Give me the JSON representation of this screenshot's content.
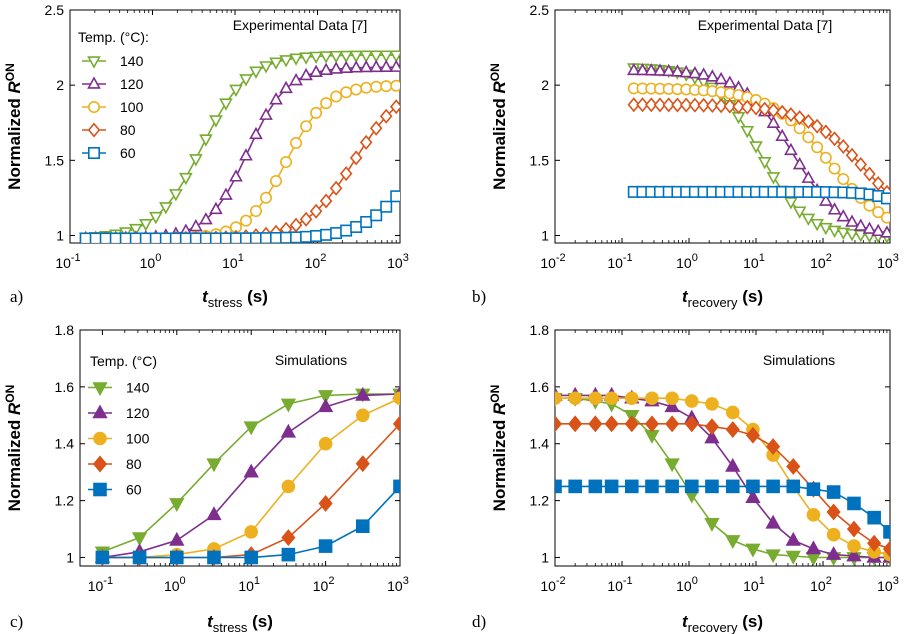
{
  "chart_data": [
    {
      "type": "line",
      "panel_label": "a)",
      "title": "",
      "annotation": "Experimental Data [7]",
      "xlabel": {
        "main": "t",
        "sub": "stress",
        "unit": " (s)"
      },
      "ylabel": {
        "main": "Normalized ",
        "italic": "R",
        "sub": "ON"
      },
      "xscale": "log",
      "xlim": [
        0.1,
        1000
      ],
      "ylim": [
        0.95,
        2.5
      ],
      "xticks": [
        0.1,
        1,
        10,
        100,
        1000
      ],
      "yticks": [
        1,
        1.5,
        2,
        2.5
      ],
      "ytick_labels": [
        "1",
        "1.5",
        "2",
        "2.5"
      ],
      "legend_title": "Temp. (°C):",
      "legend_position": "top-left",
      "series": [
        {
          "name": "140",
          "color": "#77AC30",
          "marker": "triangle-down",
          "filled": false,
          "params": {
            "a": 0.98,
            "b": 2.2,
            "c": 0.6,
            "w": 0.28
          }
        },
        {
          "name": "120",
          "color": "#7E2F8E",
          "marker": "triangle-up",
          "filled": false,
          "params": {
            "a": 0.98,
            "b": 2.12,
            "c": 1.15,
            "w": 0.24
          }
        },
        {
          "name": "100",
          "color": "#EDB120",
          "marker": "circle",
          "filled": false,
          "params": {
            "a": 0.98,
            "b": 2.0,
            "c": 1.62,
            "w": 0.24
          }
        },
        {
          "name": "80",
          "color": "#D95319",
          "marker": "diamond",
          "filled": false,
          "params": {
            "a": 0.98,
            "b": 2.02,
            "c": 2.45,
            "w": 0.3
          }
        },
        {
          "name": "60",
          "color": "#0072BD",
          "marker": "square",
          "filled": false,
          "params": {
            "a": 0.98,
            "b": 1.8,
            "c": 3.15,
            "w": 0.3
          }
        }
      ]
    },
    {
      "type": "line",
      "panel_label": "b)",
      "title": "",
      "annotation": "Experimental Data [7]",
      "xlabel": {
        "main": "t",
        "sub": "recovery",
        "unit": " (s)"
      },
      "ylabel": {
        "main": "Normalized ",
        "italic": "R",
        "sub": "ON"
      },
      "xscale": "log",
      "xlim": [
        0.01,
        1000
      ],
      "ylim": [
        0.95,
        2.5
      ],
      "xticks": [
        0.01,
        0.1,
        1,
        10,
        100,
        1000
      ],
      "yticks": [
        1,
        1.5,
        2,
        2.5
      ],
      "ytick_labels": [
        "1",
        "1.5",
        "2",
        "2.5"
      ],
      "series": [
        {
          "name": "140",
          "color": "#77AC30",
          "marker": "triangle-down",
          "filled": false,
          "params": {
            "a": 2.12,
            "b": 0.99,
            "c": 1.05,
            "w": 0.35
          }
        },
        {
          "name": "120",
          "color": "#7E2F8E",
          "marker": "triangle-up",
          "filled": false,
          "params": {
            "a": 2.1,
            "b": 0.99,
            "c": 1.55,
            "w": 0.38
          }
        },
        {
          "name": "100",
          "color": "#EDB120",
          "marker": "circle",
          "filled": false,
          "params": {
            "a": 1.98,
            "b": 0.99,
            "c": 2.1,
            "w": 0.45
          }
        },
        {
          "name": "80",
          "color": "#D95319",
          "marker": "diamond",
          "filled": false,
          "params": {
            "a": 1.87,
            "b": 0.99,
            "c": 2.65,
            "w": 0.45
          }
        },
        {
          "name": "60",
          "color": "#0072BD",
          "marker": "square",
          "filled": false,
          "params": {
            "a": 1.29,
            "b": 0.99,
            "c": 3.4,
            "w": 0.25
          }
        }
      ]
    },
    {
      "type": "line",
      "panel_label": "c)",
      "title": "",
      "annotation": "Simulations",
      "xlabel": {
        "main": "t",
        "sub": "stress",
        "unit": " (s)"
      },
      "ylabel": {
        "main": "Normalized ",
        "italic": "R",
        "sub": "ON"
      },
      "xscale": "log",
      "xlim": [
        0.05,
        1000
      ],
      "ylim": [
        0.97,
        1.8
      ],
      "xticks": [
        0.1,
        1,
        10,
        100,
        1000
      ],
      "yticks": [
        1,
        1.2,
        1.4,
        1.6,
        1.8
      ],
      "ytick_labels": [
        "1",
        "1.2",
        "1.4",
        "1.6",
        "1.8"
      ],
      "legend_title": "Temp. (°C)",
      "legend_position": "top-left",
      "series": [
        {
          "name": "140",
          "color": "#77AC30",
          "marker": "triangle-down",
          "filled": true,
          "x": [
            0.1,
            0.316,
            1,
            3.16,
            10,
            31.6,
            100,
            316,
            1000
          ],
          "y": [
            1.02,
            1.07,
            1.19,
            1.33,
            1.46,
            1.54,
            1.57,
            1.575,
            1.575
          ]
        },
        {
          "name": "120",
          "color": "#7E2F8E",
          "marker": "triangle-up",
          "filled": true,
          "x": [
            0.1,
            0.316,
            1,
            3.16,
            10,
            31.6,
            100,
            316,
            1000
          ],
          "y": [
            1.0,
            1.02,
            1.06,
            1.15,
            1.3,
            1.44,
            1.53,
            1.57,
            1.575
          ]
        },
        {
          "name": "100",
          "color": "#EDB120",
          "marker": "circle",
          "filled": true,
          "x": [
            0.1,
            0.316,
            1,
            3.16,
            10,
            31.6,
            100,
            316,
            1000
          ],
          "y": [
            1.0,
            1.0,
            1.01,
            1.03,
            1.09,
            1.25,
            1.4,
            1.5,
            1.56
          ]
        },
        {
          "name": "80",
          "color": "#D95319",
          "marker": "diamond",
          "filled": true,
          "x": [
            0.1,
            0.316,
            1,
            3.16,
            10,
            31.6,
            100,
            316,
            1000
          ],
          "y": [
            1.0,
            1.0,
            1.0,
            1.0,
            1.01,
            1.07,
            1.19,
            1.33,
            1.47
          ]
        },
        {
          "name": "60",
          "color": "#0072BD",
          "marker": "square",
          "filled": true,
          "x": [
            0.1,
            0.316,
            1,
            3.16,
            10,
            31.6,
            100,
            316,
            1000
          ],
          "y": [
            1.0,
            1.0,
            1.0,
            1.0,
            1.0,
            1.01,
            1.04,
            1.11,
            1.25
          ]
        }
      ]
    },
    {
      "type": "line",
      "panel_label": "d)",
      "title": "",
      "annotation": "Simulations",
      "xlabel": {
        "main": "t",
        "sub": "recovery",
        "unit": " (s)"
      },
      "ylabel": {
        "main": "Normalized ",
        "italic": "R",
        "sub": "ON"
      },
      "xscale": "log",
      "xlim": [
        0.01,
        1000
      ],
      "ylim": [
        0.97,
        1.8
      ],
      "xticks": [
        0.01,
        0.1,
        1,
        10,
        100,
        1000
      ],
      "yticks": [
        1,
        1.2,
        1.4,
        1.6,
        1.8
      ],
      "ytick_labels": [
        "1",
        "1.2",
        "1.4",
        "1.6",
        "1.8"
      ],
      "series": [
        {
          "name": "140",
          "color": "#77AC30",
          "marker": "triangle-down",
          "filled": true,
          "x": [
            0.01,
            0.02,
            0.04,
            0.07,
            0.14,
            0.28,
            0.56,
            1.1,
            2.2,
            4.5,
            9,
            18,
            36,
            72,
            144,
            290,
            580,
            1000
          ],
          "y": [
            1.56,
            1.56,
            1.55,
            1.54,
            1.5,
            1.43,
            1.33,
            1.22,
            1.12,
            1.06,
            1.03,
            1.01,
            1.005,
            1.0,
            1.0,
            1.0,
            1.0,
            1.0
          ]
        },
        {
          "name": "120",
          "color": "#7E2F8E",
          "marker": "triangle-up",
          "filled": true,
          "x": [
            0.01,
            0.02,
            0.04,
            0.07,
            0.14,
            0.28,
            0.56,
            1.1,
            2.2,
            4.5,
            9,
            18,
            36,
            72,
            144,
            290,
            580,
            1000
          ],
          "y": [
            1.57,
            1.57,
            1.57,
            1.57,
            1.56,
            1.55,
            1.53,
            1.49,
            1.42,
            1.32,
            1.21,
            1.12,
            1.06,
            1.03,
            1.01,
            1.005,
            1.0,
            1.0
          ]
        },
        {
          "name": "100",
          "color": "#EDB120",
          "marker": "circle",
          "filled": true,
          "x": [
            0.01,
            0.02,
            0.04,
            0.07,
            0.14,
            0.28,
            0.56,
            1.1,
            2.2,
            4.5,
            9,
            18,
            36,
            72,
            144,
            290,
            580,
            1000
          ],
          "y": [
            1.56,
            1.56,
            1.56,
            1.56,
            1.56,
            1.56,
            1.56,
            1.55,
            1.54,
            1.51,
            1.45,
            1.36,
            1.25,
            1.15,
            1.08,
            1.04,
            1.02,
            1.01
          ]
        },
        {
          "name": "80",
          "color": "#D95319",
          "marker": "diamond",
          "filled": true,
          "x": [
            0.01,
            0.02,
            0.04,
            0.07,
            0.14,
            0.28,
            0.56,
            1.1,
            2.2,
            4.5,
            9,
            18,
            36,
            72,
            144,
            290,
            580,
            1000
          ],
          "y": [
            1.47,
            1.47,
            1.47,
            1.47,
            1.47,
            1.47,
            1.47,
            1.47,
            1.46,
            1.45,
            1.43,
            1.39,
            1.32,
            1.24,
            1.16,
            1.1,
            1.05,
            1.03
          ]
        },
        {
          "name": "60",
          "color": "#0072BD",
          "marker": "square",
          "filled": true,
          "x": [
            0.01,
            0.02,
            0.04,
            0.07,
            0.14,
            0.28,
            0.56,
            1.1,
            2.2,
            4.5,
            9,
            18,
            36,
            72,
            144,
            290,
            580,
            1000
          ],
          "y": [
            1.25,
            1.25,
            1.25,
            1.25,
            1.25,
            1.25,
            1.25,
            1.25,
            1.25,
            1.25,
            1.25,
            1.25,
            1.25,
            1.24,
            1.23,
            1.19,
            1.14,
            1.09
          ]
        }
      ]
    }
  ]
}
